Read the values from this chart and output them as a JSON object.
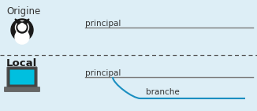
{
  "bg_color": "#ddeef6",
  "origine_label": "Origine",
  "local_label": "Local",
  "principal_label_origine": "principal",
  "principal_label_local": "principal",
  "branche_label": "branche",
  "line_color_grey": "#7a7a7a",
  "line_color_blue": "#1a8fc1",
  "dashed_color": "#555555",
  "label_fontsize": 7.5,
  "section_fontsize": 8.5,
  "local_fontsize": 9.5
}
